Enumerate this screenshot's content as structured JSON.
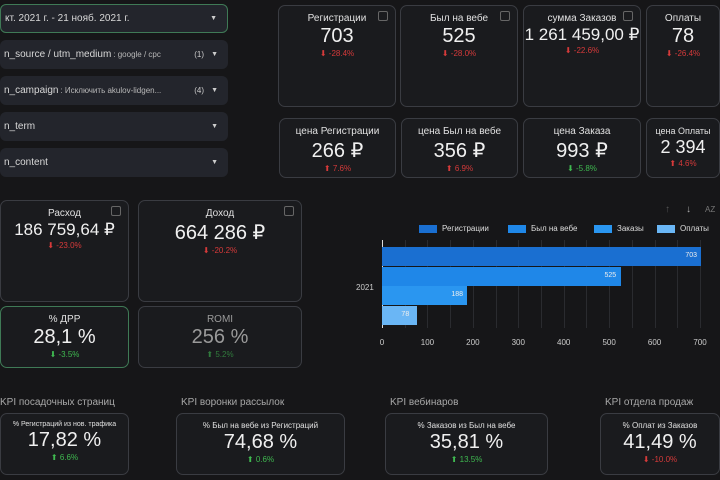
{
  "filters": [
    {
      "label": "кт. 2021 г. - 21 нояб. 2021 г.",
      "value": "",
      "count": "",
      "active": true
    },
    {
      "label": "n_source / utm_medium",
      "value": ": google / cpc",
      "count": "(1)"
    },
    {
      "label": "n_campaign",
      "value": ": Исключить akulov-lidgen...",
      "count": "(4)"
    },
    {
      "label": "n_term",
      "value": "",
      "count": ""
    },
    {
      "label": "n_content",
      "value": "",
      "count": ""
    }
  ],
  "top_cards": [
    {
      "title": "Регистрации",
      "value": "703",
      "delta": "-28.4%",
      "trend": "down"
    },
    {
      "title": "Был на вебе",
      "value": "525",
      "delta": "-28.0%",
      "trend": "down"
    },
    {
      "title": "сумма Заказов",
      "value": "1 261 459,00 ₽",
      "delta": "-22.6%",
      "trend": "down"
    },
    {
      "title": "Оплаты",
      "value": "78",
      "delta": "-26.4%",
      "trend": "down"
    }
  ],
  "price_cards": [
    {
      "title": "цена Регистрации",
      "value": "266 ₽",
      "delta": "7.6%",
      "trend": "up-bad"
    },
    {
      "title": "цена Был на вебе",
      "value": "356 ₽",
      "delta": "6.9%",
      "trend": "up-bad"
    },
    {
      "title": "цена Заказа",
      "value": "993 ₽",
      "delta": "-5.8%",
      "trend": "down-good"
    },
    {
      "title": "цена Оплаты",
      "value": "2 394",
      "delta": "4.6%",
      "trend": "up-bad"
    }
  ],
  "finance": [
    {
      "title": "Расход",
      "value": "186 759,64 ₽",
      "delta": "-23.0%"
    },
    {
      "title": "Доход",
      "value": "664 286 ₽",
      "delta": "-20.2%"
    },
    {
      "title": "% ДРР",
      "value": "28,1 %",
      "delta": "-3.5%"
    },
    {
      "title": "ROMI",
      "value": "256 %",
      "delta": "5.2%"
    }
  ],
  "kpi": [
    {
      "section": "KPI посадочных страниц",
      "title": "% Регистраций из нов. трафика",
      "value": "17,82 %",
      "delta": "6.6%",
      "trend": "green"
    },
    {
      "section": "KPI воронки рассылок",
      "title": "% Был на вебе из Регистраций",
      "value": "74,68 %",
      "delta": "0.6%",
      "trend": "green"
    },
    {
      "section": "KPI вебинаров",
      "title": "% Заказов из Был на вебе",
      "value": "35,81 %",
      "delta": "13.5%",
      "trend": "green"
    },
    {
      "section": "KPI отдела продаж",
      "title": "% Оплат из Заказов",
      "value": "41,49 %",
      "delta": "-10.0%",
      "trend": "red"
    }
  ],
  "chart_data": {
    "type": "bar",
    "orientation": "horizontal",
    "categories": [
      "2021"
    ],
    "series": [
      {
        "name": "Регистрации",
        "values": [
          703
        ],
        "color": "#1a6fd1"
      },
      {
        "name": "Был на вебе",
        "values": [
          525
        ],
        "color": "#1f87e8"
      },
      {
        "name": "Заказы",
        "values": [
          188
        ],
        "color": "#2a96f0"
      },
      {
        "name": "Оплаты",
        "values": [
          78
        ],
        "color": "#6ab6f5"
      }
    ],
    "xlim": [
      0,
      700
    ],
    "xticks": [
      "0",
      "100",
      "200",
      "300",
      "400",
      "500",
      "600",
      "700"
    ],
    "legend": "top",
    "grid": true,
    "toolbar": [
      "sort-asc-icon",
      "sort-desc-icon",
      "sort-az-icon"
    ]
  }
}
